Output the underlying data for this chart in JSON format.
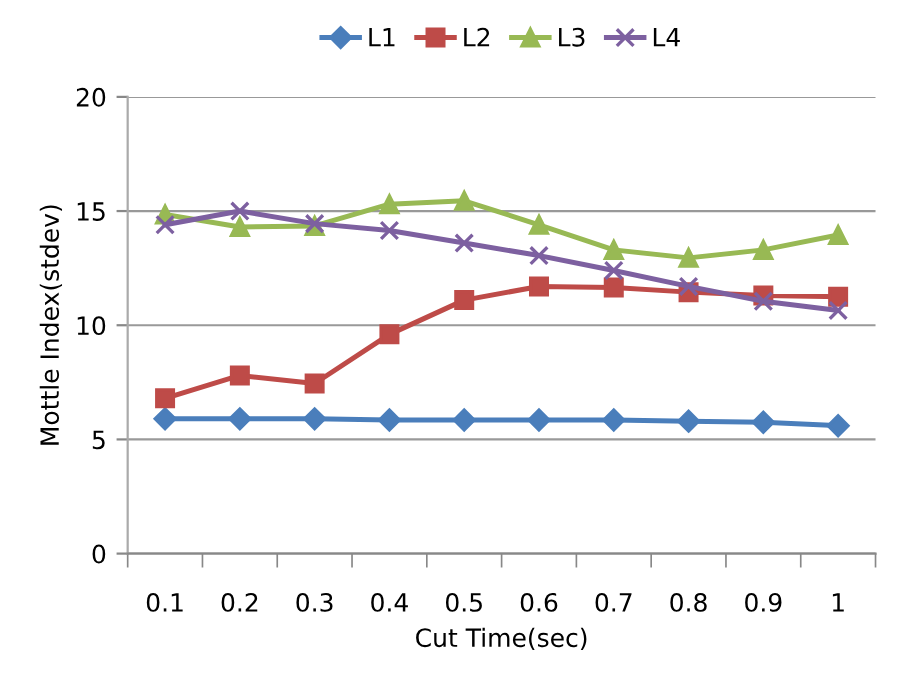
{
  "chart_data": {
    "type": "line",
    "xlabel": "Cut Time(sec)",
    "ylabel": "Mottle Index(stdev)",
    "categories": [
      "0.1",
      "0.2",
      "0.3",
      "0.4",
      "0.5",
      "0.6",
      "0.7",
      "0.8",
      "0.9",
      "1"
    ],
    "series": [
      {
        "name": "L1",
        "color": "#4a7ebb",
        "marker": "diamond",
        "values": [
          5.9,
          5.9,
          5.9,
          5.85,
          5.85,
          5.85,
          5.85,
          5.8,
          5.75,
          5.6
        ]
      },
      {
        "name": "L2",
        "color": "#be4b48",
        "marker": "square",
        "values": [
          6.8,
          7.8,
          7.45,
          9.6,
          11.1,
          11.7,
          11.65,
          11.45,
          11.3,
          11.25
        ]
      },
      {
        "name": "L3",
        "color": "#98b954",
        "marker": "triangle",
        "values": [
          14.85,
          14.3,
          14.35,
          15.3,
          15.45,
          14.4,
          13.3,
          12.95,
          13.3,
          13.95
        ]
      },
      {
        "name": "L4",
        "color": "#7d60a0",
        "marker": "cross",
        "values": [
          14.4,
          15.0,
          14.45,
          14.15,
          13.6,
          13.05,
          12.4,
          11.7,
          11.05,
          10.65
        ]
      }
    ],
    "ylim": [
      0,
      20
    ],
    "yticks": [
      0,
      5,
      10,
      15,
      20
    ],
    "grid": "y",
    "legend": "top"
  }
}
